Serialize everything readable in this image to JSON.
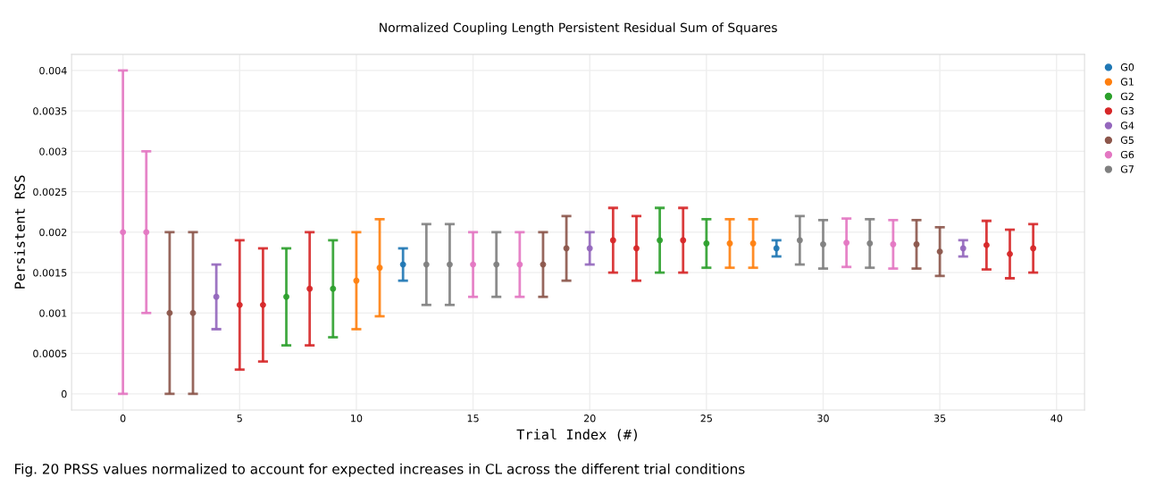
{
  "chart_data": {
    "type": "scatter",
    "title": "Normalized Coupling Length Persistent Residual Sum of Squares",
    "xlabel": "Trial Index (#)",
    "ylabel": "Persistent RSS",
    "annotations": [
      "Fig. 20 PRSS values normalized to account for expected increases in CL across the different trial conditions"
    ],
    "series": [
      {
        "name": "G0",
        "color": "#1f77b4",
        "x": [
          12,
          28
        ],
        "values": [
          0.0016,
          0.0018
        ],
        "errors": [
          0.0002,
          0.0001
        ]
      },
      {
        "name": "G1",
        "color": "#ff7f0e",
        "x": [
          10,
          11,
          26,
          27
        ],
        "values": [
          0.0014,
          0.00156,
          0.00186,
          0.00186
        ],
        "errors": [
          0.0006,
          0.0006,
          0.0003,
          0.0003
        ]
      },
      {
        "name": "G2",
        "color": "#2ca02c",
        "x": [
          7,
          9,
          23,
          25
        ],
        "values": [
          0.0012,
          0.0013,
          0.0019,
          0.00186
        ],
        "errors": [
          0.0006,
          0.0006,
          0.0004,
          0.0003
        ]
      },
      {
        "name": "G3",
        "color": "#d62728",
        "x": [
          5,
          6,
          8,
          21,
          22,
          24,
          37,
          38,
          39
        ],
        "values": [
          0.0011,
          0.0011,
          0.0013,
          0.0019,
          0.0018,
          0.0019,
          0.00184,
          0.00173,
          0.0018
        ],
        "errors": [
          0.0008,
          0.0007,
          0.0007,
          0.0004,
          0.0004,
          0.0004,
          0.0003,
          0.0003,
          0.0003
        ]
      },
      {
        "name": "G4",
        "color": "#9467bd",
        "x": [
          4,
          20,
          36
        ],
        "values": [
          0.0012,
          0.0018,
          0.0018
        ],
        "errors": [
          0.0004,
          0.0002,
          0.0001
        ]
      },
      {
        "name": "G5",
        "color": "#8c564b",
        "x": [
          2,
          3,
          18,
          19,
          34,
          35
        ],
        "values": [
          0.001,
          0.001,
          0.0016,
          0.0018,
          0.00185,
          0.00176
        ],
        "errors": [
          0.001,
          0.001,
          0.0004,
          0.0004,
          0.0003,
          0.0003
        ]
      },
      {
        "name": "G6",
        "color": "#e377c2",
        "x": [
          0,
          1,
          15,
          17,
          31,
          33
        ],
        "values": [
          0.002,
          0.002,
          0.0016,
          0.0016,
          0.00187,
          0.00185
        ],
        "errors": [
          0.002,
          0.001,
          0.0004,
          0.0004,
          0.0003,
          0.0003
        ]
      },
      {
        "name": "G7",
        "color": "#7f7f7f",
        "x": [
          13,
          14,
          16,
          29,
          30,
          32
        ],
        "values": [
          0.0016,
          0.0016,
          0.0016,
          0.0019,
          0.00185,
          0.00186
        ],
        "errors": [
          0.0005,
          0.0005,
          0.0004,
          0.0003,
          0.0003,
          0.0003
        ]
      }
    ],
    "xlim": [
      -2.2,
      41.2
    ],
    "ylim": [
      -0.0002,
      0.0042
    ],
    "xticks": [
      0,
      5,
      10,
      15,
      20,
      25,
      30,
      35,
      40
    ],
    "yticks": [
      0,
      0.0005,
      0.001,
      0.0015,
      0.002,
      0.0025,
      0.003,
      0.0035,
      0.004
    ],
    "grid": true,
    "legend": "top right",
    "marker": "circle"
  }
}
